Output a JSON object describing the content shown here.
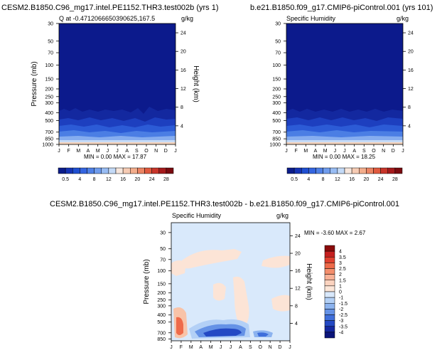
{
  "chart_data": [
    {
      "type": "heatmap",
      "title": "CESM2.B1850.C96_mg17.intel.PE1152.THR3.test002b (yrs 1)",
      "subtitle_left": "Q at -0.4712066650390625,167.5",
      "units": "g/kg",
      "ylabel": "Pressure (mb)",
      "ylabel_right": "Height (km)",
      "x": [
        "J",
        "F",
        "M",
        "A",
        "M",
        "J",
        "J",
        "A",
        "S",
        "O",
        "N",
        "D",
        "J"
      ],
      "y_ticks": [
        "30",
        "50",
        "70",
        "100",
        "150",
        "200",
        "250",
        "300",
        "400",
        "500",
        "700",
        "850",
        "1000"
      ],
      "y_ticks_right": [
        "24",
        "20",
        "16",
        "12",
        "8",
        "4"
      ],
      "stats": "MIN =  0.00 MAX =  17.87",
      "colorbar_labels": [
        "0.5",
        "4",
        "8",
        "12",
        "16",
        "20",
        "24",
        "28"
      ],
      "colorbar_colors": [
        "#0b1c8a",
        "#1533b4",
        "#1f4fd1",
        "#3465e0",
        "#4f80e6",
        "#6f9ced",
        "#98bcf3",
        "#c4daf7",
        "#f7e6dc",
        "#f6cbb4",
        "#f3ad8c",
        "#ec8564",
        "#e05a3f",
        "#c8352a",
        "#a51a1c",
        "#7a0a0f"
      ]
    },
    {
      "type": "heatmap",
      "title": "b.e21.B1850.f09_g17.CMIP6-piControl.001 (yrs 101)",
      "subtitle_left": "Specific Humidity",
      "units": "g/kg",
      "x": [
        "J",
        "F",
        "M",
        "A",
        "M",
        "J",
        "J",
        "A",
        "S",
        "O",
        "N",
        "D",
        "J"
      ],
      "y_ticks": [
        "30",
        "50",
        "70",
        "100",
        "150",
        "200",
        "250",
        "300",
        "400",
        "500",
        "700",
        "850",
        "1000"
      ],
      "y_ticks_right": [
        "24",
        "20",
        "16",
        "12",
        "8",
        "4"
      ],
      "stats": "MIN =  0.00 MAX =  18.25",
      "colorbar_labels": [
        "0.5",
        "4",
        "8",
        "12",
        "16",
        "20",
        "24",
        "28"
      ]
    },
    {
      "type": "heatmap",
      "title": "CESM2.B1850.C96_mg17.intel.PE1152.THR3.test002b - b.e21.B1850.f09_g17.CMIP6-piControl.001",
      "subtitle_left": "Specific Humidity",
      "units": "g/kg",
      "ylabel": "Pressure (mb)",
      "ylabel_right": "Height (km)",
      "x": [
        "J",
        "F",
        "M",
        "A",
        "M",
        "J",
        "J",
        "A",
        "S",
        "O",
        "N",
        "D",
        "J"
      ],
      "y_ticks": [
        "30",
        "50",
        "70",
        "100",
        "150",
        "200",
        "250",
        "300",
        "400",
        "500",
        "700",
        "850"
      ],
      "y_ticks_right": [
        "24",
        "20",
        "16",
        "12",
        "8",
        "4"
      ],
      "stats": "MIN =  -3.60 MAX =  2.67",
      "colorbar_labels": [
        "4",
        "3.5",
        "3",
        "2.5",
        "2",
        "1.5",
        "1",
        "0",
        "-1",
        "-1.5",
        "-2",
        "-2.5",
        "-3",
        "-3.5",
        "-4"
      ],
      "colorbar_colors": [
        "#8a0b0b",
        "#c51f1f",
        "#e0402f",
        "#ee6a4a",
        "#f48e6c",
        "#f8b196",
        "#fbd3bf",
        "#fce6d8",
        "#d8e8fb",
        "#b3d0f6",
        "#8cb3ef",
        "#6592e6",
        "#3f6fdb",
        "#2449c4",
        "#1528a0",
        "#0b157a"
      ]
    }
  ]
}
